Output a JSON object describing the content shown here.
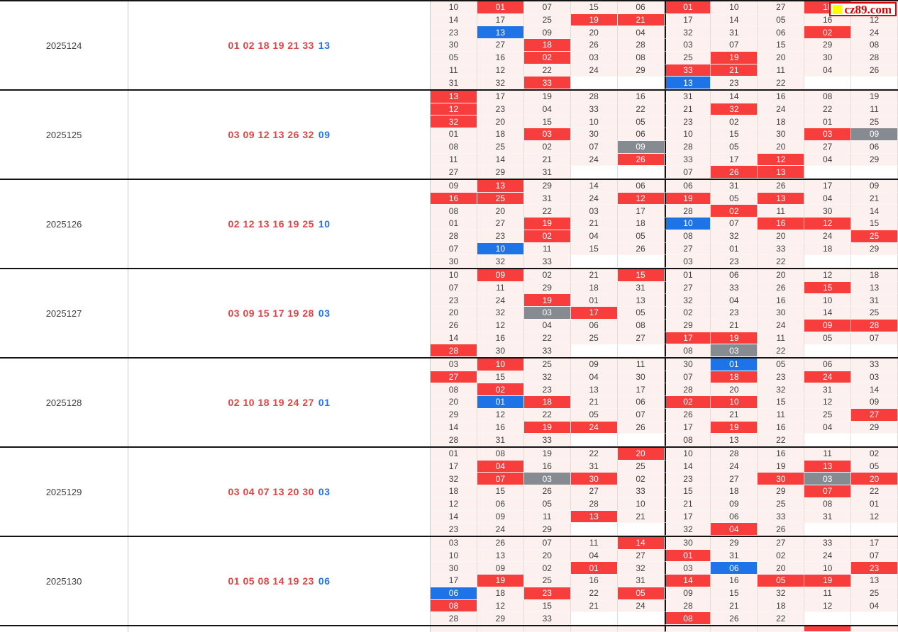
{
  "logo": {
    "label": "cz89.com"
  },
  "colors": {
    "red": "#f83d3d",
    "blue": "#1e74e6",
    "gray": "#868b92",
    "cell_bg": "#fdf1f0",
    "red_text": "#e04545",
    "blue_text": "#2472e0",
    "logo_red": "#dd0000",
    "logo_yellow": "#ffff00",
    "divider_dark": "#141414"
  },
  "legend_note": "",
  "periods": [
    {
      "period": "2025124",
      "red_balls": "01 02 18 19 21 33",
      "blue_ball": "13",
      "rows": [
        [
          "10",
          "01r",
          "07",
          "15",
          "06",
          "01r",
          "10",
          "27",
          "18r",
          "09"
        ],
        [
          "14",
          "17",
          "25",
          "19r",
          "21r",
          "17",
          "14",
          "05",
          "16",
          "12"
        ],
        [
          "23",
          "13b",
          "09",
          "20",
          "04",
          "32",
          "31",
          "06",
          "02r",
          "24"
        ],
        [
          "30",
          "27",
          "18r",
          "26",
          "28",
          "03",
          "07",
          "15",
          "29",
          "08"
        ],
        [
          "05",
          "16",
          "02r",
          "03",
          "08",
          "25",
          "19r",
          "20",
          "30",
          "28"
        ],
        [
          "11",
          "12",
          "22",
          "24",
          "29",
          "33r",
          "21r",
          "11",
          "04",
          "26"
        ],
        [
          "31",
          "32",
          "33r",
          "",
          "",
          "13b",
          "23",
          "22",
          "",
          ""
        ]
      ]
    },
    {
      "period": "2025125",
      "red_balls": "03 09 12 13 26 32",
      "blue_ball": "09",
      "rows": [
        [
          "13r",
          "17",
          "19",
          "28",
          "16",
          "31",
          "14",
          "16",
          "08",
          "19"
        ],
        [
          "12r",
          "23",
          "04",
          "33",
          "22",
          "21",
          "32r",
          "24",
          "22",
          "11"
        ],
        [
          "32r",
          "20",
          "15",
          "10",
          "05",
          "23",
          "02",
          "18",
          "01",
          "25"
        ],
        [
          "01",
          "18",
          "03r",
          "30",
          "06",
          "10",
          "15",
          "30",
          "03r",
          "09g"
        ],
        [
          "08",
          "25",
          "02",
          "07",
          "09g",
          "28",
          "05",
          "20",
          "27",
          "06"
        ],
        [
          "11",
          "14",
          "21",
          "24",
          "26r",
          "33",
          "17",
          "12r",
          "04",
          "29"
        ],
        [
          "27",
          "29",
          "31",
          "",
          "",
          "07",
          "26r",
          "13r",
          "",
          ""
        ]
      ]
    },
    {
      "period": "2025126",
      "red_balls": "02 12 13 16 19 25",
      "blue_ball": "10",
      "rows": [
        [
          "09",
          "13r",
          "29",
          "14",
          "06",
          "06",
          "31",
          "26",
          "17",
          "09"
        ],
        [
          "16r",
          "25r",
          "31",
          "24",
          "12r",
          "19r",
          "05",
          "13r",
          "04",
          "21"
        ],
        [
          "08",
          "20",
          "22",
          "03",
          "17",
          "28",
          "02r",
          "11",
          "30",
          "14"
        ],
        [
          "01",
          "27",
          "19r",
          "21",
          "18",
          "10b",
          "07",
          "16r",
          "12r",
          "15"
        ],
        [
          "28",
          "23",
          "02r",
          "04",
          "05",
          "08",
          "32",
          "20",
          "24",
          "25r"
        ],
        [
          "07",
          "10b",
          "11",
          "15",
          "26",
          "27",
          "01",
          "33",
          "18",
          "29"
        ],
        [
          "30",
          "32",
          "33",
          "",
          "",
          "03",
          "23",
          "22",
          "",
          ""
        ]
      ]
    },
    {
      "period": "2025127",
      "red_balls": "03 09 15 17 19 28",
      "blue_ball": "03",
      "rows": [
        [
          "10",
          "09r",
          "02",
          "21",
          "15r",
          "01",
          "06",
          "20",
          "12",
          "18"
        ],
        [
          "07",
          "11",
          "29",
          "18",
          "31",
          "27",
          "33",
          "26",
          "15r",
          "13"
        ],
        [
          "23",
          "24",
          "19r",
          "01",
          "13",
          "32",
          "04",
          "16",
          "10",
          "31"
        ],
        [
          "20",
          "32",
          "03g",
          "17r",
          "05",
          "02",
          "23",
          "30",
          "14",
          "25"
        ],
        [
          "26",
          "12",
          "04",
          "06",
          "08",
          "29",
          "21",
          "24",
          "09r",
          "28r"
        ],
        [
          "14",
          "16",
          "22",
          "25",
          "27",
          "17r",
          "19r",
          "11",
          "05",
          "07"
        ],
        [
          "28r",
          "30",
          "33",
          "",
          "",
          "08",
          "03g",
          "22",
          "",
          ""
        ]
      ]
    },
    {
      "period": "2025128",
      "red_balls": "02 10 18 19 24 27",
      "blue_ball": "01",
      "rows": [
        [
          "03",
          "10r",
          "25",
          "09",
          "11",
          "30",
          "01b",
          "05",
          "06",
          "33"
        ],
        [
          "27r",
          "15",
          "32",
          "04",
          "30",
          "07",
          "18r",
          "23",
          "24r",
          "03"
        ],
        [
          "08",
          "02r",
          "23",
          "13",
          "17",
          "28",
          "20",
          "32",
          "31",
          "14"
        ],
        [
          "20",
          "01b",
          "18r",
          "21",
          "06",
          "02r",
          "10r",
          "15",
          "12",
          "09"
        ],
        [
          "29",
          "12",
          "22",
          "05",
          "07",
          "26",
          "21",
          "11",
          "25",
          "27r"
        ],
        [
          "14",
          "16",
          "19r",
          "24r",
          "26",
          "17",
          "19r",
          "16",
          "04",
          "29"
        ],
        [
          "28",
          "31",
          "33",
          "",
          "",
          "08",
          "13",
          "22",
          "",
          ""
        ]
      ]
    },
    {
      "period": "2025129",
      "red_balls": "03 04 07 13 20 30",
      "blue_ball": "03",
      "rows": [
        [
          "01",
          "08",
          "19",
          "22",
          "20r",
          "10",
          "28",
          "16",
          "11",
          "02"
        ],
        [
          "17",
          "04r",
          "16",
          "31",
          "25",
          "14",
          "24",
          "19",
          "13r",
          "05"
        ],
        [
          "32",
          "07r",
          "03g",
          "30r",
          "02",
          "23",
          "27",
          "30r",
          "03g",
          "20r"
        ],
        [
          "18",
          "15",
          "26",
          "27",
          "33",
          "15",
          "18",
          "29",
          "07r",
          "22"
        ],
        [
          "12",
          "06",
          "05",
          "28",
          "10",
          "21",
          "09",
          "25",
          "08",
          "01"
        ],
        [
          "14",
          "09",
          "11",
          "13r",
          "21",
          "17",
          "06",
          "33",
          "31",
          "12"
        ],
        [
          "23",
          "24",
          "29",
          "",
          "",
          "32",
          "04r",
          "26",
          "",
          ""
        ]
      ]
    },
    {
      "period": "2025130",
      "red_balls": "01 05 08 14 19 23",
      "blue_ball": "06",
      "rows": [
        [
          "03",
          "26",
          "07",
          "11",
          "14r",
          "30",
          "29",
          "27",
          "33",
          "17"
        ],
        [
          "10",
          "13",
          "20",
          "04",
          "27",
          "01r",
          "31",
          "02",
          "24",
          "07"
        ],
        [
          "30",
          "09",
          "02",
          "01r",
          "32",
          "03",
          "06b",
          "20",
          "10",
          "23r"
        ],
        [
          "17",
          "19r",
          "25",
          "16",
          "31",
          "14r",
          "16",
          "05r",
          "19r",
          "13"
        ],
        [
          "06b",
          "18",
          "23r",
          "22",
          "05r",
          "09",
          "15",
          "32",
          "11",
          "25"
        ],
        [
          "08r",
          "12",
          "15",
          "21",
          "24",
          "28",
          "21",
          "18",
          "12",
          "04"
        ],
        [
          "28",
          "29",
          "33",
          "",
          "",
          "08r",
          "26",
          "22",
          "",
          ""
        ]
      ]
    }
  ],
  "partial_next_row": [
    "",
    "",
    "",
    "",
    "",
    "",
    "",
    "",
    "r",
    ""
  ]
}
